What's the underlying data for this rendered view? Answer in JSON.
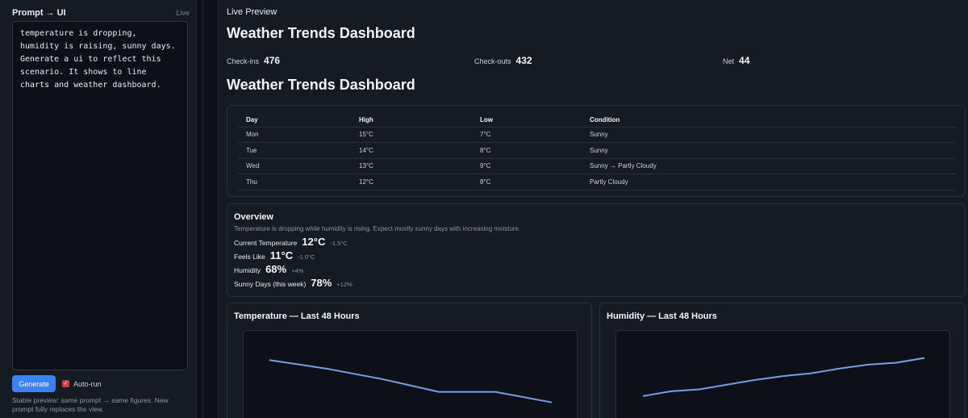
{
  "left": {
    "title": "Prompt → UI",
    "live_tag": "Live",
    "prompt_text": "temperature is dropping, humidity is raising, sunny days. Generate a ui to reflect this scenario. It shows to line charts and weather dashboard.",
    "generate_label": "Generate",
    "autorun_label": "Auto-run",
    "autorun_checked": true,
    "note": "Stable preview: same prompt → same figures. New prompt fully replaces the view."
  },
  "preview": {
    "header": "Live Preview",
    "title1": "Weather Trends Dashboard",
    "stats": [
      {
        "label": "Check-ins",
        "value": "476"
      },
      {
        "label": "Check-outs",
        "value": "432"
      },
      {
        "label": "Net",
        "value": "44"
      }
    ],
    "title2": "Weather Trends Dashboard",
    "table": {
      "headers": [
        "Day",
        "High",
        "Low",
        "Condition"
      ],
      "rows": [
        [
          "Mon",
          "15°C",
          "7°C",
          "Sunny"
        ],
        [
          "Tue",
          "14°C",
          "8°C",
          "Sunny"
        ],
        [
          "Wed",
          "13°C",
          "9°C",
          "Sunny → Partly Cloudy"
        ],
        [
          "Thu",
          "12°C",
          "8°C",
          "Partly Cloudy"
        ]
      ]
    },
    "overview": {
      "title": "Overview",
      "description": "Temperature is dropping while humidity is rising. Expect mostly sunny days with increasing moisture.",
      "metrics": [
        {
          "label": "Current Temperature",
          "value": "12°C",
          "delta": "-1.5°C"
        },
        {
          "label": "Feels Like",
          "value": "11°C",
          "delta": "-1.0°C"
        },
        {
          "label": "Humidity",
          "value": "68%",
          "delta": "+4%"
        },
        {
          "label": "Sunny Days (this week)",
          "value": "78%",
          "delta": "+12%"
        }
      ]
    },
    "charts": [
      {
        "title": "Temperature — Last 48 Hours",
        "line_color": "#7c9ce8"
      },
      {
        "title": "Humidity — Last 48 Hours",
        "line_color": "#7c9ce8"
      }
    ]
  },
  "chart_data": [
    {
      "type": "line",
      "title": "Temperature — Last 48 Hours",
      "x": [
        0,
        1,
        2,
        3,
        4,
        5
      ],
      "series": [
        {
          "values": [
            13.5,
            13.1,
            12.6,
            12.0,
            12.0,
            11.5
          ]
        }
      ]
    },
    {
      "type": "line",
      "title": "Humidity — Last 48 Hours",
      "x": [
        0,
        1,
        2,
        3,
        4,
        5,
        6,
        7,
        8,
        9,
        10
      ],
      "series": [
        {
          "values": [
            64,
            64.5,
            64.7,
            65.2,
            65.7,
            66.1,
            66.4,
            66.9,
            67.3,
            67.5,
            68
          ]
        }
      ]
    }
  ]
}
